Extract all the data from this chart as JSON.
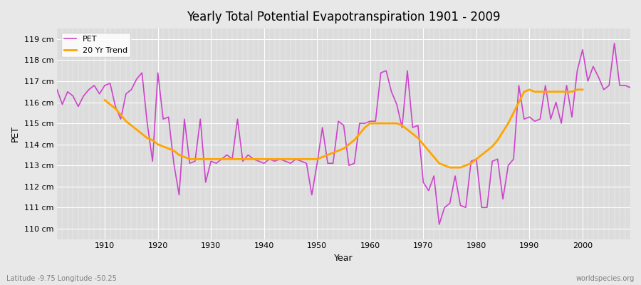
{
  "title": "Yearly Total Potential Evapotranspiration 1901 - 2009",
  "xlabel": "Year",
  "ylabel": "PET",
  "subtitle_left": "Latitude -9.75 Longitude -50.25",
  "subtitle_right": "worldspecies.org",
  "pet_color": "#CC44CC",
  "trend_color": "#FFA500",
  "background_color": "#E8E8E8",
  "plot_bg_color": "#DCDCDC",
  "ylim": [
    109.5,
    119.5
  ],
  "years": [
    1901,
    1902,
    1903,
    1904,
    1905,
    1906,
    1907,
    1908,
    1909,
    1910,
    1911,
    1912,
    1913,
    1914,
    1915,
    1916,
    1917,
    1918,
    1919,
    1920,
    1921,
    1922,
    1923,
    1924,
    1925,
    1926,
    1927,
    1928,
    1929,
    1930,
    1931,
    1932,
    1933,
    1934,
    1935,
    1936,
    1937,
    1938,
    1939,
    1940,
    1941,
    1942,
    1943,
    1944,
    1945,
    1946,
    1947,
    1948,
    1949,
    1950,
    1951,
    1952,
    1953,
    1954,
    1955,
    1956,
    1957,
    1958,
    1959,
    1960,
    1961,
    1962,
    1963,
    1964,
    1965,
    1966,
    1967,
    1968,
    1969,
    1970,
    1971,
    1972,
    1973,
    1974,
    1975,
    1976,
    1977,
    1978,
    1979,
    1980,
    1981,
    1982,
    1983,
    1984,
    1985,
    1986,
    1987,
    1988,
    1989,
    1990,
    1991,
    1992,
    1993,
    1994,
    1995,
    1996,
    1997,
    1998,
    1999,
    2000,
    2001,
    2002,
    2003,
    2004,
    2005,
    2006,
    2007,
    2008,
    2009
  ],
  "pet_values": [
    116.6,
    115.9,
    116.5,
    116.3,
    115.8,
    116.3,
    116.6,
    116.8,
    116.4,
    116.8,
    116.9,
    115.8,
    115.2,
    116.4,
    116.6,
    117.1,
    117.4,
    115.0,
    113.2,
    117.4,
    115.2,
    115.3,
    113.1,
    111.6,
    115.2,
    113.1,
    113.2,
    115.2,
    112.2,
    113.2,
    113.1,
    113.3,
    113.5,
    113.3,
    115.2,
    113.2,
    113.5,
    113.3,
    113.2,
    113.1,
    113.3,
    113.2,
    113.3,
    113.2,
    113.1,
    113.3,
    113.2,
    113.1,
    111.6,
    113.1,
    114.8,
    113.1,
    113.1,
    115.1,
    114.9,
    113.0,
    113.1,
    115.0,
    115.0,
    115.1,
    115.1,
    117.4,
    117.5,
    116.5,
    115.9,
    114.8,
    117.5,
    114.8,
    114.9,
    112.2,
    111.8,
    112.5,
    110.2,
    111.0,
    111.2,
    112.5,
    111.1,
    111.0,
    113.2,
    113.3,
    111.0,
    111.0,
    113.2,
    113.3,
    111.4,
    113.0,
    113.3,
    116.8,
    115.2,
    115.3,
    115.1,
    115.2,
    116.8,
    115.2,
    116.0,
    115.0,
    116.8,
    115.3,
    117.5,
    118.5,
    117.0,
    117.7,
    117.2,
    116.6,
    116.8,
    118.8,
    116.8,
    116.8,
    116.7
  ],
  "trend_years": [
    1910,
    1911,
    1912,
    1913,
    1914,
    1915,
    1916,
    1917,
    1918,
    1919,
    1920,
    1921,
    1922,
    1923,
    1924,
    1925,
    1926,
    1927,
    1928,
    1929,
    1930,
    1931,
    1932,
    1933,
    1934,
    1935,
    1936,
    1937,
    1938,
    1939,
    1940,
    1941,
    1942,
    1943,
    1944,
    1945,
    1946,
    1947,
    1948,
    1949,
    1950,
    1951,
    1952,
    1953,
    1954,
    1955,
    1956,
    1957,
    1958,
    1959,
    1960,
    1961,
    1962,
    1963,
    1964,
    1965,
    1966,
    1967,
    1968,
    1969,
    1970,
    1971,
    1972,
    1973,
    1974,
    1975,
    1976,
    1977,
    1978,
    1979,
    1980,
    1981,
    1982,
    1983,
    1984,
    1985,
    1986,
    1987,
    1988,
    1989,
    1990,
    1991,
    1992,
    1993,
    1994,
    1995,
    1996,
    1997,
    1998,
    1999,
    2000
  ],
  "trend_values": [
    116.1,
    115.9,
    115.7,
    115.4,
    115.1,
    114.9,
    114.7,
    114.5,
    114.3,
    114.2,
    114.0,
    113.9,
    113.8,
    113.7,
    113.5,
    113.4,
    113.3,
    113.3,
    113.3,
    113.3,
    113.3,
    113.3,
    113.3,
    113.3,
    113.3,
    113.3,
    113.3,
    113.3,
    113.3,
    113.3,
    113.3,
    113.3,
    113.3,
    113.3,
    113.3,
    113.3,
    113.3,
    113.3,
    113.3,
    113.3,
    113.3,
    113.4,
    113.5,
    113.6,
    113.7,
    113.8,
    114.0,
    114.2,
    114.5,
    114.8,
    115.0,
    115.0,
    115.0,
    115.0,
    115.0,
    115.0,
    114.9,
    114.7,
    114.5,
    114.3,
    114.0,
    113.7,
    113.4,
    113.1,
    113.0,
    112.9,
    112.9,
    112.9,
    113.0,
    113.1,
    113.3,
    113.5,
    113.7,
    113.9,
    114.2,
    114.6,
    115.0,
    115.5,
    116.0,
    116.5,
    116.6,
    116.5,
    116.5,
    116.5,
    116.5,
    116.5,
    116.5,
    116.5,
    116.5,
    116.6,
    116.6
  ]
}
